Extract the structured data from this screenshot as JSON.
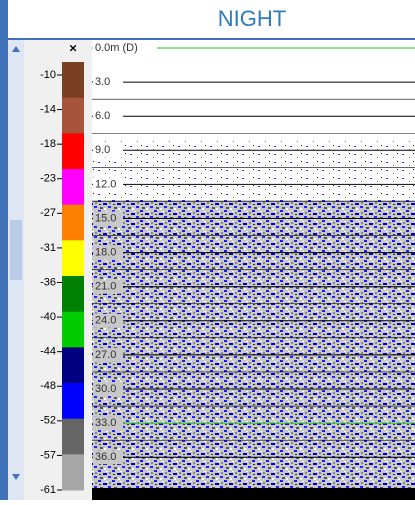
{
  "header": {
    "title": "NIGHT"
  },
  "colorbar": {
    "close": "×",
    "labels": [
      "-10",
      "-14",
      "-18",
      "-23",
      "-27",
      "-31",
      "-36",
      "-40",
      "-44",
      "-48",
      "-52",
      "-57",
      "-61"
    ],
    "colors": [
      "#7b3f22",
      "#a8543a",
      "#ff0000",
      "#ff00ff",
      "#ff8000",
      "#ffff00",
      "#008000",
      "#00cc00",
      "#000080",
      "#0000ff",
      "#666666",
      "#a6a6a6"
    ]
  },
  "echogram": {
    "depth_labels": [
      "0.0m (D)",
      "3.0",
      "6.0",
      "9.0",
      "12.0",
      "15.0",
      "18.0",
      "21.0",
      "24.0",
      "27.0",
      "30.0",
      "33.0",
      "36.0"
    ]
  }
}
